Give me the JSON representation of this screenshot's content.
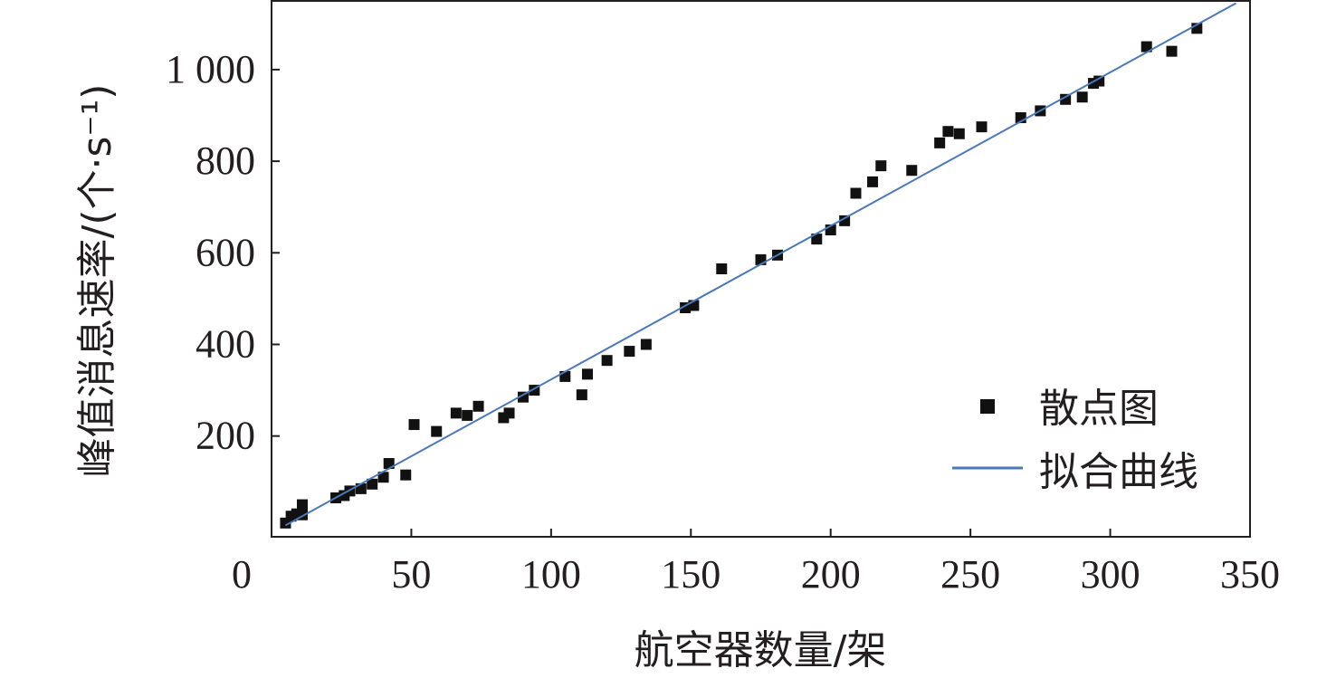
{
  "chart_data": {
    "type": "scatter",
    "xlabel": "航空器数量/架",
    "ylabel": "峰值消息速率/(个·s⁻¹)",
    "xlim": [
      0,
      350
    ],
    "ylim": [
      -20,
      1150
    ],
    "x_ticks": [
      0,
      50,
      100,
      150,
      200,
      250,
      300,
      350
    ],
    "x_tick_labels": [
      "0",
      "50",
      "100",
      "150",
      "200",
      "250",
      "300",
      "350"
    ],
    "y_ticks": [
      200,
      400,
      600,
      800,
      1000
    ],
    "y_tick_labels": [
      "200",
      "400",
      "600",
      "800",
      "1 000"
    ],
    "grid": false,
    "legend_position": "bottom-right",
    "colors": {
      "points": "#111111",
      "fit_line": "#4a78b8",
      "axis": "#231f20"
    },
    "series": [
      {
        "name": "散点图",
        "kind": "scatter",
        "x": [
          5,
          7,
          9,
          11,
          11,
          23,
          26,
          28,
          32,
          36,
          40,
          42,
          48,
          51,
          59,
          66,
          70,
          74,
          83,
          85,
          90,
          94,
          105,
          111,
          113,
          120,
          128,
          134,
          148,
          151,
          161,
          175,
          181,
          195,
          200,
          205,
          209,
          215,
          218,
          229,
          239,
          242,
          246,
          254,
          268,
          275,
          284,
          290,
          294,
          296,
          313,
          322,
          331
        ],
        "y": [
          10,
          25,
          30,
          28,
          50,
          65,
          70,
          80,
          85,
          95,
          110,
          140,
          115,
          225,
          210,
          250,
          245,
          265,
          240,
          250,
          285,
          300,
          330,
          290,
          335,
          365,
          385,
          400,
          480,
          485,
          565,
          585,
          595,
          630,
          650,
          670,
          730,
          755,
          790,
          780,
          840,
          865,
          860,
          875,
          895,
          910,
          935,
          940,
          970,
          975,
          1050,
          1040,
          1090
        ]
      },
      {
        "name": "拟合曲线",
        "kind": "line",
        "x": [
          5,
          345
        ],
        "y": [
          5,
          1145
        ]
      }
    ]
  }
}
